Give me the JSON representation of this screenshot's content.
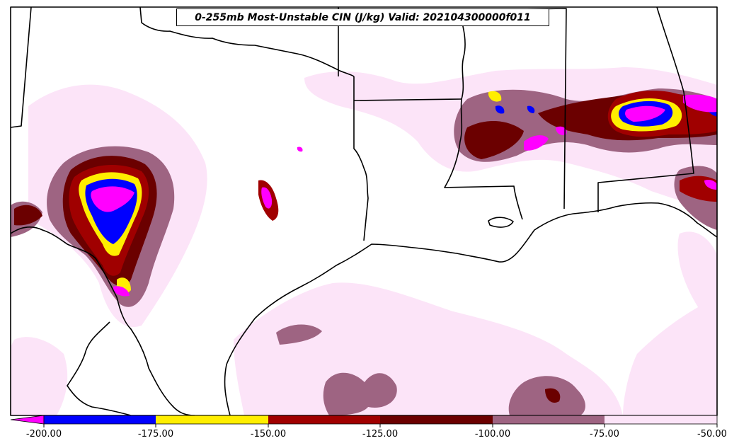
{
  "title": "0-255mb Most-Unstable CIN (J/kg) Valid: 202104300000f011",
  "colorbar": {
    "ticks": [
      "-200.00",
      "-175.00",
      "-150.00",
      "-125.00",
      "-100.00",
      "-75.00",
      "-50.00"
    ],
    "extend": "min",
    "bins": [
      {
        "range": "< -200",
        "color": "#ff00ff"
      },
      {
        "range": "-200 to -175",
        "color": "#0000ff"
      },
      {
        "range": "-175 to -150",
        "color": "#ffee00"
      },
      {
        "range": "-150 to -125",
        "color": "#a00000"
      },
      {
        "range": "-125 to -100",
        "color": "#6b0000"
      },
      {
        "range": "-100 to -75",
        "color": "#9e6482"
      },
      {
        "range": "-75 to -50",
        "color": "#fce4f8"
      }
    ]
  },
  "map": {
    "region": "South-central United States and Gulf of Mexico",
    "field": "CIN",
    "units": "J/kg"
  }
}
